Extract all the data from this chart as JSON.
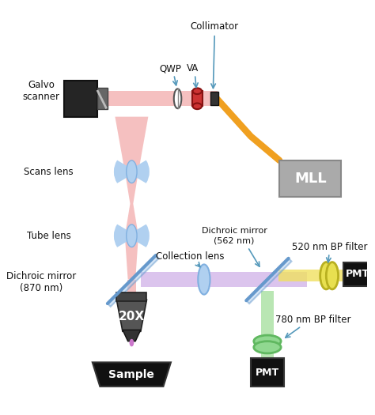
{
  "bg_color": "#ffffff",
  "labels": {
    "collimator": "Collimator",
    "qwp": "QWP",
    "va": "VA",
    "galvo": "Galvo\nscanner",
    "scans_lens": "Scans lens",
    "tube_lens": "Tube lens",
    "dichroic_870": "Dichroic mirror\n(870 nm)",
    "dichroic_562": "Dichroic mirror\n(562 nm)",
    "collection_lens": "Collection lens",
    "filter_520": "520 nm BP filter",
    "filter_780": "780 nm BP filter",
    "pmt_top": "PMT",
    "pmt_bottom": "PMT",
    "mll": "MLL",
    "sample": "Sample",
    "objective": "20X"
  },
  "colors": {
    "beam_pink": "#f5c0c0",
    "beam_purple": "#d0b0e8",
    "beam_yellow": "#f0e060",
    "beam_green": "#a8e0a0",
    "galvo_body": "#252525",
    "lens_blue": "#b0d0f0",
    "lens_blue2": "#80b0e0",
    "dichroic_blue": "#6699cc",
    "mll_box": "#aaaaaa",
    "pmt_box": "#111111",
    "sample_box": "#111111",
    "fiber_orange": "#f0a020",
    "filter_yellow": "#e8e050",
    "filter_green": "#90d890",
    "arrow_color": "#5599bb",
    "text_color": "#111111"
  }
}
